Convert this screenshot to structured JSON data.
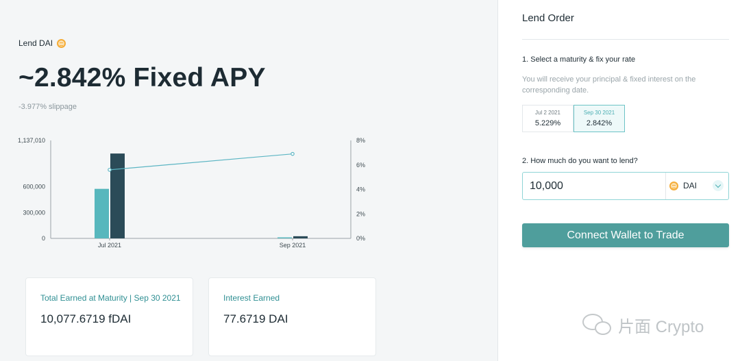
{
  "header": {
    "lend_label": "Lend DAI",
    "apy_title": "~2.842% Fixed APY",
    "slippage": "-3.977% slippage"
  },
  "chart_data": {
    "type": "bar",
    "categories": [
      "Jul 2021",
      "Sep 2021"
    ],
    "series": [
      {
        "values": [
          575000,
          0
        ],
        "color": "#57b7bd"
      },
      {
        "values": [
          985000,
          25000
        ],
        "color": "#2b4b58"
      }
    ],
    "line": {
      "y_axis": "right",
      "values": [
        5.6,
        6.9
      ],
      "unit": "%",
      "color": "#5bb5c3"
    },
    "left_axis": {
      "ticks": [
        "1,137,010",
        "600,000",
        "300,000",
        "0"
      ],
      "tick_values": [
        1137010,
        600000,
        300000,
        0
      ],
      "ylim": [
        0,
        1137010
      ]
    },
    "right_axis": {
      "ticks": [
        "8%",
        "6%",
        "4%",
        "2%",
        "0%"
      ],
      "tick_values": [
        8,
        6,
        4,
        2,
        0
      ],
      "ylim": [
        0,
        8
      ]
    },
    "x_ticks": [
      "Jul 2021",
      "Sep 2021"
    ]
  },
  "cards": [
    {
      "title": "Total Earned at Maturity | Sep 30 2021",
      "value": "10,077.6719 fDAI"
    },
    {
      "title": "Interest Earned",
      "value": "77.6719 DAI"
    }
  ],
  "order": {
    "title": "Lend Order",
    "step1": "1. Select a maturity & fix your rate",
    "hint": "You will receive your principal & fixed interest on the corresponding date.",
    "maturities": [
      {
        "date": "Jul 2 2021",
        "rate": "5.229%",
        "selected": false
      },
      {
        "date": "Sep 30 2021",
        "rate": "2.842%",
        "selected": true
      }
    ],
    "step2": "2. How much do you want to lend?",
    "amount": "10,000",
    "token": "DAI",
    "connect_label": "Connect Wallet to Trade"
  },
  "watermark": "片面 Crypto",
  "icons": {
    "token": "dai-coin-icon",
    "dropdown": "chevron-down-icon",
    "watermark": "wechat-icon"
  }
}
